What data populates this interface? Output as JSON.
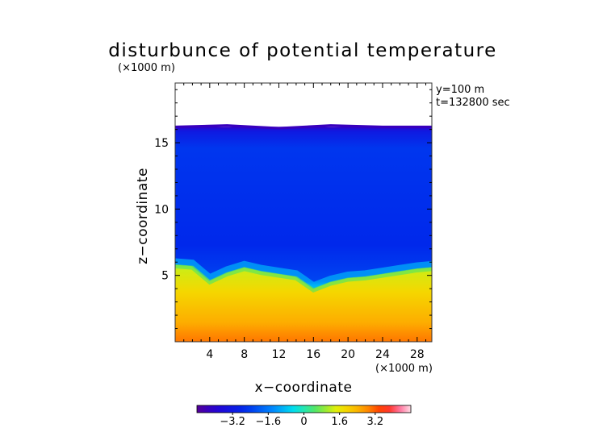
{
  "chart_data": {
    "type": "heatmap",
    "title": "disturbunce of potential temperature",
    "y_unit_label": "(×1000 m)",
    "x_unit_label": "(×1000 m)",
    "xlabel": "x−coordinate",
    "ylabel": "z−coordinate",
    "annotations": [
      "y=100 m",
      "t=132800 sec"
    ],
    "x_ticks": [
      4,
      8,
      12,
      16,
      20,
      24,
      28
    ],
    "y_ticks": [
      5,
      10,
      15
    ],
    "xlim": [
      0,
      29.7
    ],
    "ylim": [
      0,
      19.5
    ],
    "grid": false,
    "colormap": "rainbow",
    "colorbar": {
      "labels": [
        "−3.2",
        "−1.6",
        "0",
        "1.6",
        "3.2"
      ],
      "ticks": [
        -3.2,
        -1.6,
        0,
        1.6,
        3.2
      ],
      "range": [
        -4.8,
        4.8
      ],
      "placement": "bottom"
    },
    "field": {
      "description_values": "approximate potential-temperature disturbance by height band",
      "top_of_data_km": 16.2,
      "interface_height_km": 5.5,
      "upper_region_value": -2.6,
      "lower_region_value": 2.0,
      "near_surface_value": 3.0
    },
    "interface_profile": {
      "x": [
        0,
        2,
        4,
        6,
        8,
        10,
        12,
        14,
        16,
        18,
        20,
        22,
        24,
        26,
        28,
        29.7
      ],
      "z": [
        5.8,
        5.7,
        4.6,
        5.2,
        5.6,
        5.3,
        5.1,
        4.9,
        4.0,
        4.5,
        4.8,
        4.9,
        5.1,
        5.3,
        5.5,
        5.6
      ]
    },
    "top_profile": {
      "x": [
        0,
        6,
        12,
        18,
        24,
        29.7
      ],
      "z": [
        16.2,
        16.3,
        16.1,
        16.3,
        16.2,
        16.2
      ]
    }
  }
}
